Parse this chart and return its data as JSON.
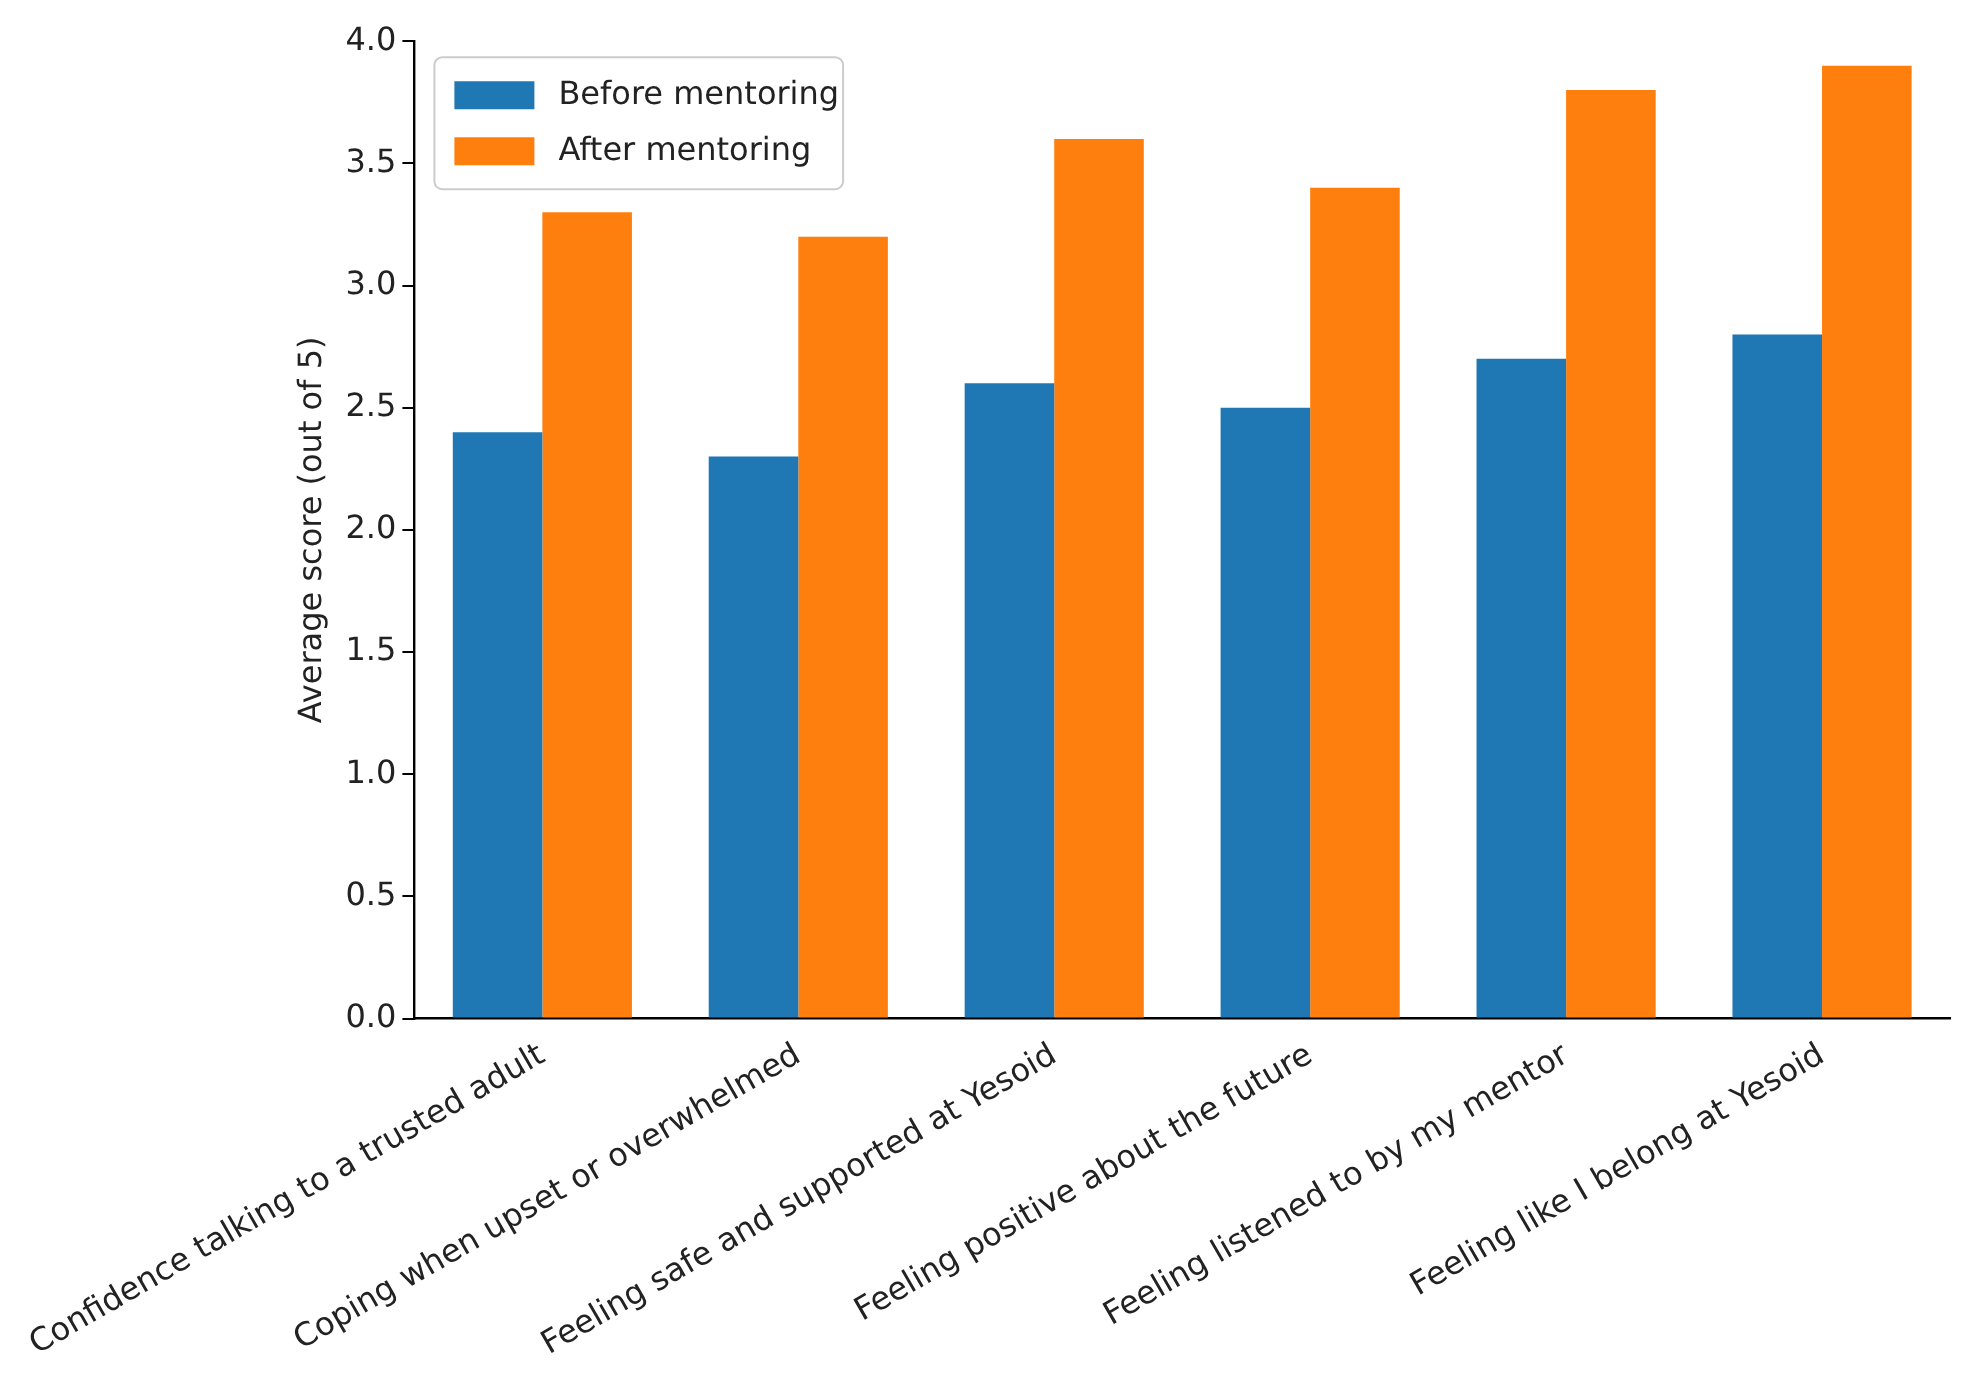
{
  "chart_data": {
    "type": "bar",
    "ylabel": "Average score (out of 5)",
    "categories": [
      "Confidence talking to a trusted adult",
      "Coping when upset or overwhelmed",
      "Feeling safe and supported at Yesoid",
      "Feeling positive about the future",
      "Feeling listened to by my mentor",
      "Feeling like I belong at Yesoid"
    ],
    "series": [
      {
        "name": "Before mentoring",
        "color": "#1f77b4",
        "values": [
          2.4,
          2.3,
          2.6,
          2.5,
          2.7,
          2.8
        ]
      },
      {
        "name": "After mentoring",
        "color": "#ff7f0e",
        "values": [
          3.3,
          3.2,
          3.6,
          3.4,
          3.8,
          3.9
        ]
      }
    ],
    "ylim": [
      0,
      4.0
    ],
    "yticks": [
      {
        "value": 0,
        "label": "0.0"
      },
      {
        "value": 0.5,
        "label": "0.5"
      },
      {
        "value": 1,
        "label": "1.0"
      },
      {
        "value": 1.5,
        "label": "1.5"
      },
      {
        "value": 2,
        "label": "2.0"
      },
      {
        "value": 2.5,
        "label": "2.5"
      },
      {
        "value": 3,
        "label": "3.0"
      },
      {
        "value": 3.5,
        "label": "3.5"
      },
      {
        "value": 4,
        "label": "4.0"
      }
    ],
    "grid": false,
    "legend": "top left"
  }
}
